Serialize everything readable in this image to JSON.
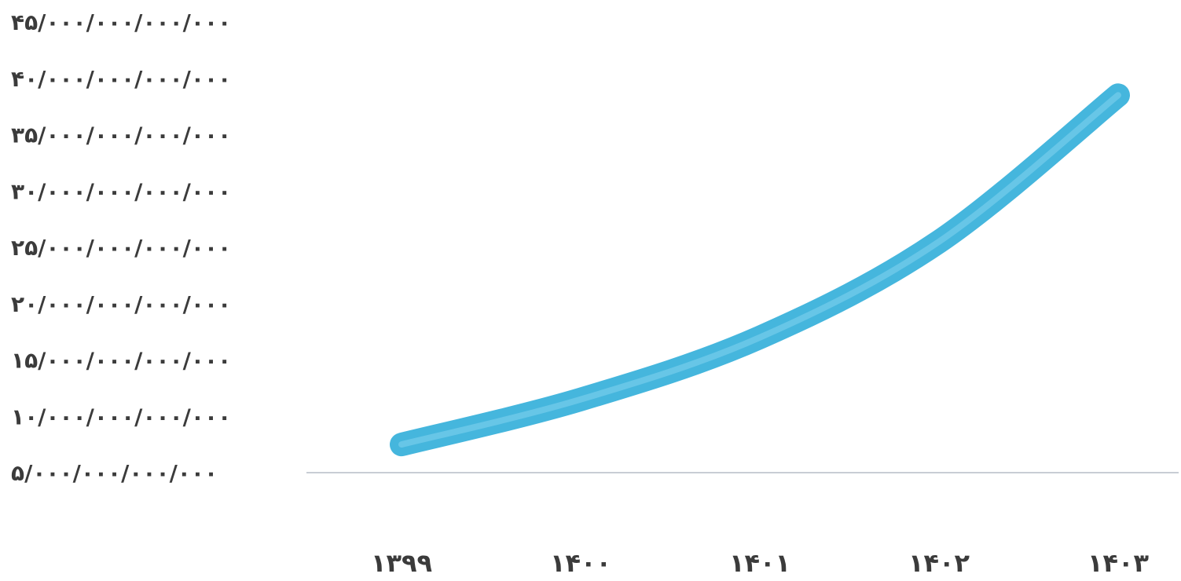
{
  "chart_data": {
    "type": "line",
    "title": "",
    "xlabel": "",
    "ylabel": "",
    "categories": [
      "۱۳۹۹",
      "۱۴۰۰",
      "۱۴۰۱",
      "۱۴۰۲",
      "۱۴۰۳"
    ],
    "y_ticks": [
      {
        "value": 5000000000000,
        "label": "۵/۰۰۰/۰۰۰/۰۰۰/۰۰۰"
      },
      {
        "value": 10000000000000,
        "label": "۱۰/۰۰۰/۰۰۰/۰۰۰/۰۰۰"
      },
      {
        "value": 15000000000000,
        "label": "۱۵/۰۰۰/۰۰۰/۰۰۰/۰۰۰"
      },
      {
        "value": 20000000000000,
        "label": "۲۰/۰۰۰/۰۰۰/۰۰۰/۰۰۰"
      },
      {
        "value": 25000000000000,
        "label": "۲۵/۰۰۰/۰۰۰/۰۰۰/۰۰۰"
      },
      {
        "value": 30000000000000,
        "label": "۳۰/۰۰۰/۰۰۰/۰۰۰/۰۰۰"
      },
      {
        "value": 35000000000000,
        "label": "۳۵/۰۰۰/۰۰۰/۰۰۰/۰۰۰"
      },
      {
        "value": 40000000000000,
        "label": "۴۰/۰۰۰/۰۰۰/۰۰۰/۰۰۰"
      },
      {
        "value": 45000000000000,
        "label": "۴۵/۰۰۰/۰۰۰/۰۰۰/۰۰۰"
      }
    ],
    "ylim": [
      5000000000000,
      45000000000000
    ],
    "series": [
      {
        "values": [
          7500000000000,
          11500000000000,
          17000000000000,
          25500000000000,
          38500000000000
        ],
        "color": "#45b6dd"
      }
    ],
    "grid": false,
    "legend": "none"
  }
}
